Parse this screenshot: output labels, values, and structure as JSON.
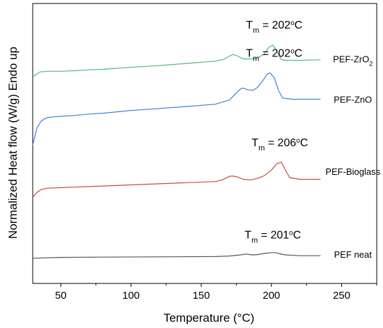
{
  "chart_data": {
    "type": "line",
    "title": "",
    "xlabel": "Temperature (°C)",
    "ylabel": "Normalized Heat flow (W/g) Endo up",
    "xlim": [
      30,
      275
    ],
    "ylim": [
      0,
      10
    ],
    "xticks": [
      50,
      100,
      150,
      200,
      250
    ],
    "xtick_labels": [
      "50",
      "100",
      "150",
      "200",
      "250"
    ],
    "grid": false,
    "legend": "none",
    "series": [
      {
        "name": "PEF-ZrO2",
        "color": "#4fb97a",
        "x": [
          30,
          35,
          40,
          50,
          60,
          70,
          80,
          100,
          120,
          140,
          160,
          166,
          170,
          173,
          176,
          180,
          185,
          190,
          195,
          198,
          201,
          204,
          207,
          210,
          220,
          235
        ],
        "y": [
          7.38,
          7.55,
          7.58,
          7.58,
          7.6,
          7.63,
          7.65,
          7.72,
          7.78,
          7.86,
          7.94,
          8.0,
          8.12,
          8.18,
          8.12,
          8.02,
          8.02,
          8.05,
          8.2,
          8.42,
          8.52,
          8.28,
          8.0,
          7.97,
          7.97,
          7.99
        ]
      },
      {
        "name": "PEF-ZnO",
        "color": "#3a85d0",
        "x": [
          30,
          33,
          36,
          40,
          45,
          50,
          60,
          70,
          80,
          100,
          120,
          140,
          160,
          170,
          175,
          178,
          180,
          183,
          187,
          190,
          194,
          197,
          199,
          202,
          205,
          208,
          215,
          235
        ],
        "y": [
          4.95,
          5.55,
          5.8,
          5.92,
          5.95,
          5.97,
          6.0,
          6.05,
          6.08,
          6.18,
          6.25,
          6.32,
          6.4,
          6.55,
          6.8,
          6.95,
          6.98,
          6.92,
          6.9,
          7.0,
          7.25,
          7.48,
          7.52,
          7.35,
          6.9,
          6.62,
          6.58,
          6.58
        ]
      },
      {
        "name": "PEF-Bioglass",
        "color": "#c84a3c",
        "x": [
          30,
          33,
          36,
          40,
          50,
          60,
          70,
          80,
          100,
          120,
          140,
          160,
          165,
          170,
          172,
          176,
          180,
          185,
          190,
          195,
          200,
          204,
          207,
          210,
          213,
          220,
          235
        ],
        "y": [
          3.08,
          3.25,
          3.35,
          3.4,
          3.42,
          3.44,
          3.46,
          3.48,
          3.52,
          3.56,
          3.6,
          3.64,
          3.7,
          3.82,
          3.84,
          3.8,
          3.72,
          3.7,
          3.75,
          3.85,
          4.05,
          4.28,
          4.33,
          4.05,
          3.78,
          3.72,
          3.72
        ]
      },
      {
        "name": "PEF neat",
        "color": "#555555",
        "x": [
          30,
          50,
          80,
          120,
          160,
          170,
          178,
          182,
          186,
          190,
          196,
          200,
          203,
          206,
          210,
          220,
          235
        ],
        "y": [
          0.9,
          0.93,
          0.94,
          0.95,
          0.96,
          0.98,
          1.02,
          1.05,
          1.02,
          1.03,
          1.08,
          1.1,
          1.1,
          1.06,
          1.02,
          0.99,
          0.99
        ]
      }
    ],
    "annotations": [
      {
        "text_main": "T",
        "text_sub": "m",
        "text_rest": " = 202",
        "text_sup": "o",
        "text_end": "C",
        "series": "PEF-ZrO2",
        "x": 202,
        "y": 9.1
      },
      {
        "text_main": "T",
        "text_sub": "m",
        "text_rest": " = 202",
        "text_sup": "o",
        "text_end": "C",
        "series": "PEF-ZnO",
        "x": 202,
        "y": 8.1
      },
      {
        "text_main": "T",
        "text_sub": "m",
        "text_rest": " = 206",
        "text_sup": "o",
        "text_end": "C",
        "series": "PEF-Bioglass",
        "x": 206,
        "y": 4.9
      },
      {
        "text_main": "T",
        "text_sub": "m",
        "text_rest": " = 201",
        "text_sup": "o",
        "text_end": "C",
        "series": "PEF neat",
        "x": 201,
        "y": 1.6
      }
    ],
    "series_labels": [
      {
        "series": "PEF-ZrO2",
        "main": "PEF-ZrO",
        "sub": "2",
        "x": 258,
        "y": 8.02
      },
      {
        "series": "PEF-ZnO",
        "main": "PEF-ZnO",
        "sub": "",
        "x": 258,
        "y": 6.58
      },
      {
        "series": "PEF-Bioglass",
        "main": "PEF-Bioglass",
        "sub": "",
        "x": 258,
        "y": 4.0
      },
      {
        "series": "PEF neat",
        "main": "PEF neat",
        "sub": "",
        "x": 258,
        "y": 1.05
      }
    ]
  }
}
